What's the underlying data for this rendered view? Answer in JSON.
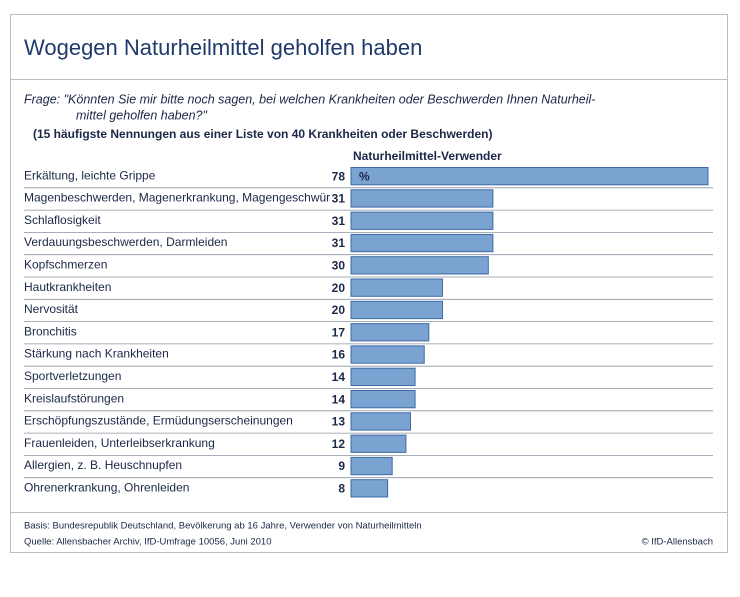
{
  "chart_data": {
    "type": "bar",
    "orientation": "horizontal",
    "title": "Wogegen Naturheilmittel geholfen haben",
    "question": [
      "Frage: \"Könnten Sie mir bitte noch sagen, bei welchen Krankheiten oder Beschwerden Ihnen Naturheil-",
      "mittel geholfen haben?\""
    ],
    "subtitle": "(15 häufigste Nennungen aus einer Liste von 40 Krankheiten oder Beschwerden)",
    "series_name": "Naturheilmittel-Verwender",
    "unit_label": "%",
    "categories": [
      "Erkältung, leichte Grippe",
      "Magenbeschwerden, Magenerkrankung, Magengeschwür",
      "Schlaflosigkeit",
      "Verdauungsbeschwerden, Darmleiden",
      "Kopfschmerzen",
      "Hautkrankheiten",
      "Nervosität",
      "Bronchitis",
      "Stärkung nach Krankheiten",
      "Sportverletzungen",
      "Kreislaufstörungen",
      "Erschöpfungszustände, Ermüdungserscheinungen",
      "Frauenleiden, Unterleibserkrankung",
      "Allergien, z. B. Heuschnupfen",
      "Ohrenerkrankung, Ohrenleiden"
    ],
    "values": [
      78,
      31,
      31,
      31,
      30,
      20,
      20,
      17,
      16,
      14,
      14,
      13,
      12,
      9,
      8
    ],
    "color": "#7aa3d2",
    "footnotes": [
      "Basis: Bundesrepublik Deutschland, Bevölkerung ab 16 Jahre, Verwender von Naturheilmitteln",
      "Quelle: Allensbacher Archiv, IfD-Umfrage 10056, Juni 2010"
    ],
    "copyright": "© IfD-Allensbach"
  }
}
